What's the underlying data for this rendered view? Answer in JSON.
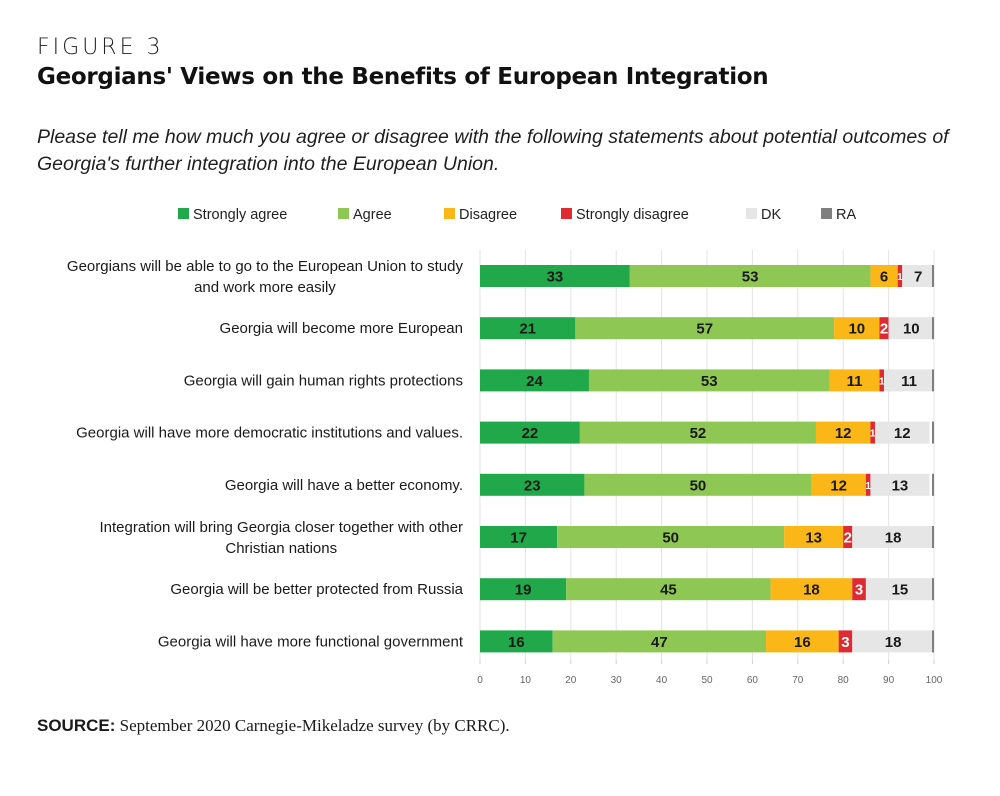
{
  "figure": {
    "label": "FIGURE 3",
    "title": "Georgians' Views on the Benefits of European Integration",
    "subtitle": "Please tell me how much you agree or disagree with the following statements about potential outcomes of Georgia's further integration into the European Union.",
    "source_label": "SOURCE:",
    "source_text": "September 2020 Carnegie-Mikeladze survey (by CRRC)."
  },
  "chart_data": {
    "type": "bar",
    "orientation": "horizontal",
    "stacked": true,
    "title": "Georgians' Views on the Benefits of European Integration",
    "xlabel": "",
    "ylabel": "",
    "xlim": [
      0,
      100
    ],
    "xticks": [
      0,
      10,
      20,
      30,
      40,
      50,
      60,
      70,
      80,
      90,
      100
    ],
    "grid": true,
    "legend_position": "top",
    "categories": [
      [
        "Georgians will be able to go to the European Union to study",
        "and work more easily"
      ],
      [
        "Georgia will become more European"
      ],
      [
        "Georgia will gain human rights protections"
      ],
      [
        "Georgia will have more democratic institutions and values."
      ],
      [
        "Georgia will have a better economy."
      ],
      [
        "Integration will bring Georgia closer together with other",
        "Christian nations"
      ],
      [
        "Georgia will be better protected from Russia"
      ],
      [
        "Georgia will have more functional government"
      ]
    ],
    "series": [
      {
        "name": "Strongly agree",
        "color": "#21a84a",
        "label_color": "#1a1a1a",
        "values": [
          33,
          21,
          24,
          22,
          23,
          17,
          19,
          16
        ]
      },
      {
        "name": "Agree",
        "color": "#8fc754",
        "label_color": "#1a1a1a",
        "values": [
          53,
          57,
          53,
          52,
          50,
          50,
          45,
          47
        ]
      },
      {
        "name": "Disagree",
        "color": "#fbb617",
        "label_color": "#1a1a1a",
        "values": [
          6,
          10,
          11,
          12,
          12,
          13,
          18,
          16
        ]
      },
      {
        "name": "Strongly disagree",
        "color": "#de2a30",
        "label_color": "#ffffff",
        "values": [
          1,
          2,
          1,
          1,
          1,
          2,
          3,
          3
        ]
      },
      {
        "name": "DK",
        "color": "#e6e6e6",
        "label_color": "#1a1a1a",
        "values": [
          7,
          10,
          11,
          12,
          13,
          18,
          15,
          18
        ]
      },
      {
        "name": "RA",
        "color": "#7f7f7f",
        "label_color": "#1a1a1a",
        "values": [
          0,
          0,
          0,
          0,
          0,
          0,
          0,
          0
        ],
        "show_labels": false
      }
    ]
  }
}
